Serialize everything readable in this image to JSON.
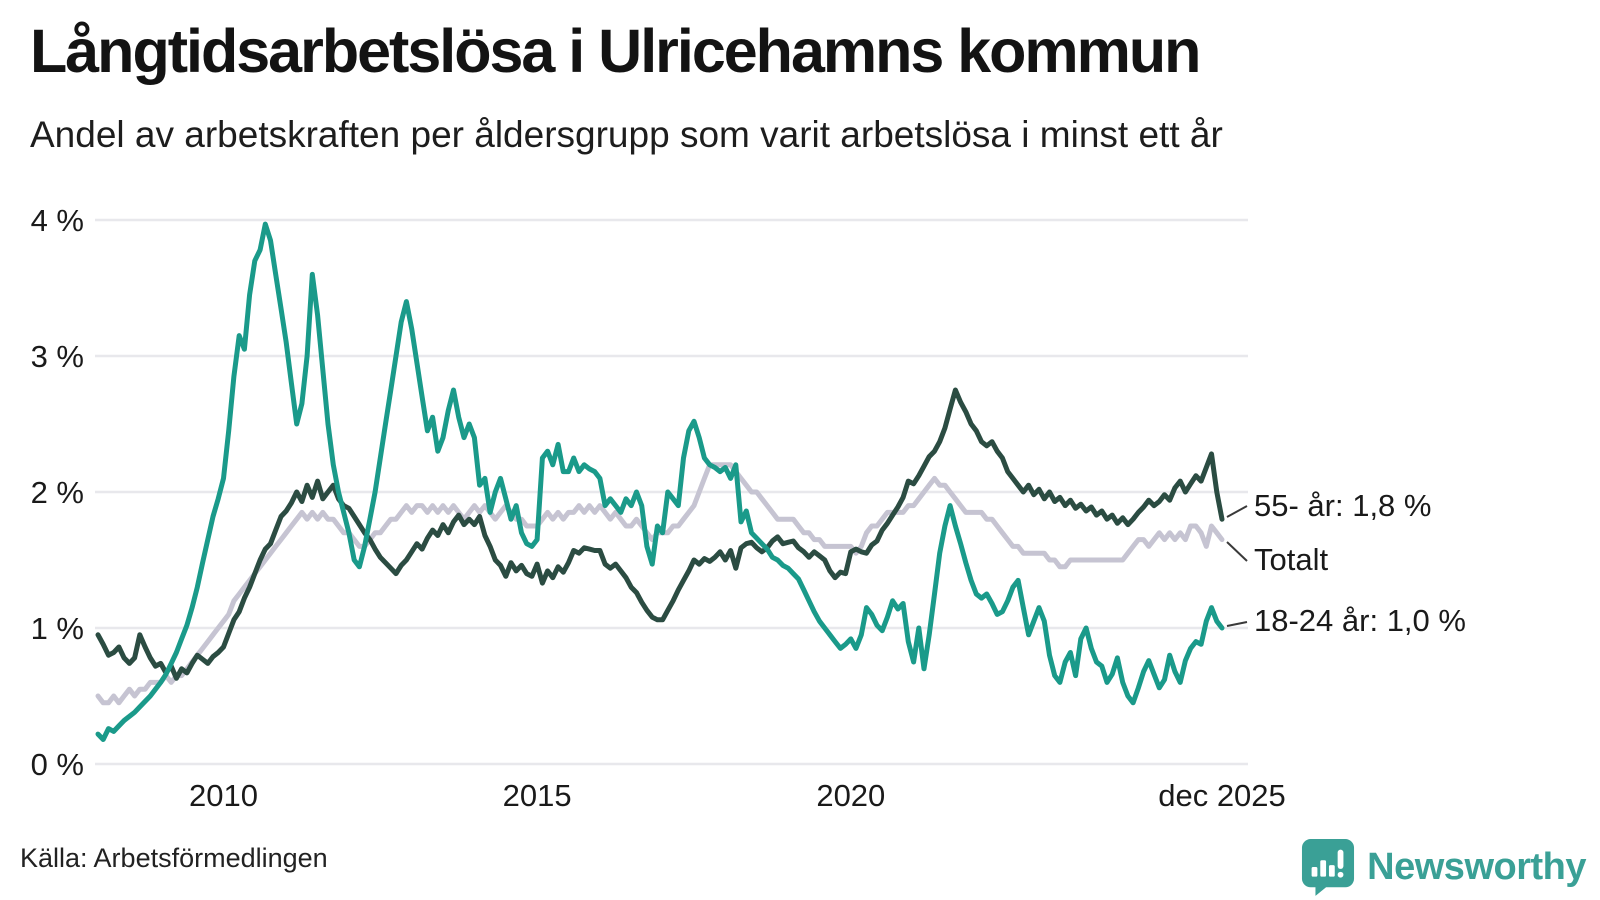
{
  "header": {
    "title": "Långtidsarbetslösa i Ulricehamns kommun",
    "subtitle": "Andel av arbetskraften per åldersgrupp som varit arbetslösa i minst ett år"
  },
  "footer": {
    "source": "Källa: Arbetsförmedlingen",
    "brand": "Newsworthy",
    "brand_color": "#3aa096"
  },
  "chart_data": {
    "type": "line",
    "title": "Långtidsarbetslösa i Ulricehamns kommun",
    "subtitle": "Andel av arbetskraften per åldersgrupp som varit arbetslösa i minst ett år",
    "source": "Källa: Arbetsförmedlingen",
    "grid": "horizontal",
    "legend_position": "end-of-line-labels-right",
    "x_axis": {
      "tick_labels": [
        "2010",
        "2015",
        "2020",
        "dec 2025"
      ],
      "tick_month_index": [
        24,
        84,
        144,
        215
      ],
      "start_year": 2008,
      "months_total": 216,
      "unit": "month"
    },
    "y_axis": {
      "tick_labels": [
        "0 %",
        "1 %",
        "2 %",
        "3 %",
        "4 %"
      ],
      "ylim": [
        0,
        4
      ],
      "unit": "%"
    },
    "series": [
      {
        "id": "55-ar",
        "name": "55- år",
        "end_label": "55- år: 1,8 %",
        "last_value": 1.8,
        "color": "#2b4c42",
        "values": [
          0.95,
          0.88,
          0.8,
          0.82,
          0.86,
          0.78,
          0.74,
          0.78,
          0.95,
          0.86,
          0.78,
          0.72,
          0.74,
          0.67,
          0.72,
          0.63,
          0.7,
          0.67,
          0.74,
          0.8,
          0.77,
          0.74,
          0.79,
          0.82,
          0.86,
          0.96,
          1.06,
          1.12,
          1.22,
          1.3,
          1.4,
          1.5,
          1.58,
          1.62,
          1.72,
          1.82,
          1.86,
          1.92,
          2.0,
          1.93,
          2.05,
          1.96,
          2.08,
          1.95,
          2.0,
          2.05,
          1.95,
          1.9,
          1.88,
          1.82,
          1.76,
          1.7,
          1.65,
          1.58,
          1.52,
          1.48,
          1.44,
          1.4,
          1.46,
          1.5,
          1.56,
          1.62,
          1.58,
          1.66,
          1.72,
          1.68,
          1.76,
          1.7,
          1.78,
          1.83,
          1.76,
          1.8,
          1.76,
          1.82,
          1.68,
          1.6,
          1.5,
          1.46,
          1.38,
          1.48,
          1.42,
          1.46,
          1.4,
          1.38,
          1.47,
          1.33,
          1.42,
          1.37,
          1.45,
          1.41,
          1.48,
          1.57,
          1.55,
          1.59,
          1.58,
          1.57,
          1.57,
          1.47,
          1.44,
          1.47,
          1.42,
          1.37,
          1.3,
          1.26,
          1.19,
          1.13,
          1.08,
          1.06,
          1.06,
          1.13,
          1.2,
          1.28,
          1.35,
          1.42,
          1.5,
          1.47,
          1.51,
          1.49,
          1.52,
          1.56,
          1.5,
          1.57,
          1.44,
          1.59,
          1.62,
          1.63,
          1.59,
          1.56,
          1.59,
          1.64,
          1.67,
          1.62,
          1.63,
          1.64,
          1.59,
          1.56,
          1.52,
          1.56,
          1.53,
          1.5,
          1.42,
          1.37,
          1.41,
          1.4,
          1.56,
          1.58,
          1.56,
          1.55,
          1.61,
          1.64,
          1.72,
          1.77,
          1.83,
          1.89,
          1.96,
          2.08,
          2.06,
          2.12,
          2.19,
          2.26,
          2.3,
          2.37,
          2.47,
          2.61,
          2.75,
          2.66,
          2.59,
          2.5,
          2.45,
          2.37,
          2.34,
          2.37,
          2.3,
          2.25,
          2.15,
          2.1,
          2.05,
          2.0,
          2.05,
          1.98,
          2.02,
          1.95,
          2.0,
          1.93,
          1.96,
          1.9,
          1.94,
          1.88,
          1.91,
          1.86,
          1.89,
          1.83,
          1.86,
          1.8,
          1.83,
          1.77,
          1.81,
          1.76,
          1.8,
          1.85,
          1.89,
          1.94,
          1.9,
          1.93,
          1.98,
          1.94,
          2.03,
          2.08,
          2.0,
          2.06,
          2.12,
          2.08,
          2.18,
          2.28,
          2.0,
          1.8
        ]
      },
      {
        "id": "totalt",
        "name": "Totalt",
        "end_label": "Totalt",
        "last_value": 1.65,
        "color": "#c6c4d2",
        "values": [
          0.5,
          0.45,
          0.45,
          0.5,
          0.45,
          0.5,
          0.55,
          0.5,
          0.55,
          0.55,
          0.6,
          0.6,
          0.6,
          0.65,
          0.6,
          0.65,
          0.65,
          0.7,
          0.75,
          0.8,
          0.85,
          0.9,
          0.95,
          1.0,
          1.05,
          1.1,
          1.2,
          1.25,
          1.3,
          1.35,
          1.4,
          1.45,
          1.5,
          1.55,
          1.6,
          1.65,
          1.7,
          1.75,
          1.8,
          1.85,
          1.8,
          1.85,
          1.8,
          1.85,
          1.8,
          1.8,
          1.75,
          1.7,
          1.7,
          1.65,
          1.6,
          1.6,
          1.65,
          1.7,
          1.7,
          1.75,
          1.8,
          1.8,
          1.85,
          1.9,
          1.85,
          1.9,
          1.9,
          1.85,
          1.9,
          1.85,
          1.9,
          1.85,
          1.9,
          1.85,
          1.8,
          1.85,
          1.9,
          1.85,
          1.9,
          1.85,
          1.8,
          1.85,
          1.9,
          1.85,
          1.8,
          1.8,
          1.75,
          1.75,
          1.75,
          1.8,
          1.85,
          1.8,
          1.85,
          1.8,
          1.85,
          1.85,
          1.9,
          1.85,
          1.9,
          1.85,
          1.9,
          1.85,
          1.8,
          1.85,
          1.8,
          1.75,
          1.75,
          1.8,
          1.75,
          1.7,
          1.65,
          1.7,
          1.7,
          1.7,
          1.75,
          1.75,
          1.8,
          1.85,
          1.9,
          2.0,
          2.1,
          2.2,
          2.2,
          2.2,
          2.2,
          2.2,
          2.15,
          2.1,
          2.05,
          2.0,
          2.0,
          1.95,
          1.9,
          1.85,
          1.8,
          1.8,
          1.8,
          1.8,
          1.75,
          1.7,
          1.7,
          1.65,
          1.65,
          1.6,
          1.6,
          1.6,
          1.6,
          1.6,
          1.6,
          1.55,
          1.6,
          1.7,
          1.75,
          1.75,
          1.8,
          1.85,
          1.85,
          1.85,
          1.85,
          1.9,
          1.9,
          1.95,
          2.0,
          2.05,
          2.1,
          2.05,
          2.05,
          2.0,
          1.95,
          1.9,
          1.85,
          1.85,
          1.85,
          1.85,
          1.8,
          1.8,
          1.75,
          1.7,
          1.65,
          1.6,
          1.6,
          1.55,
          1.55,
          1.55,
          1.55,
          1.55,
          1.5,
          1.5,
          1.45,
          1.45,
          1.5,
          1.5,
          1.5,
          1.5,
          1.5,
          1.5,
          1.5,
          1.5,
          1.5,
          1.5,
          1.5,
          1.55,
          1.6,
          1.65,
          1.65,
          1.6,
          1.65,
          1.7,
          1.65,
          1.7,
          1.65,
          1.7,
          1.65,
          1.75,
          1.75,
          1.7,
          1.6,
          1.75,
          1.7,
          1.65
        ]
      },
      {
        "id": "18-24-ar",
        "name": "18-24 år",
        "end_label": "18-24 år: 1,0 %",
        "last_value": 1.0,
        "color": "#1a9a8a",
        "values": [
          0.22,
          0.18,
          0.26,
          0.24,
          0.28,
          0.32,
          0.35,
          0.38,
          0.42,
          0.46,
          0.5,
          0.55,
          0.6,
          0.66,
          0.74,
          0.82,
          0.92,
          1.02,
          1.15,
          1.3,
          1.48,
          1.65,
          1.82,
          1.95,
          2.1,
          2.45,
          2.85,
          3.15,
          3.05,
          3.45,
          3.7,
          3.78,
          3.97,
          3.85,
          3.6,
          3.35,
          3.1,
          2.8,
          2.5,
          2.65,
          3.0,
          3.6,
          3.3,
          2.9,
          2.5,
          2.2,
          2.0,
          1.85,
          1.7,
          1.5,
          1.45,
          1.6,
          1.8,
          2.0,
          2.25,
          2.5,
          2.75,
          3.0,
          3.25,
          3.4,
          3.2,
          2.95,
          2.7,
          2.45,
          2.55,
          2.3,
          2.4,
          2.6,
          2.75,
          2.55,
          2.4,
          2.5,
          2.4,
          2.05,
          2.1,
          1.85,
          2.0,
          2.1,
          1.95,
          1.8,
          1.9,
          1.7,
          1.62,
          1.6,
          1.65,
          2.25,
          2.3,
          2.2,
          2.35,
          2.15,
          2.15,
          2.25,
          2.15,
          2.2,
          2.17,
          2.15,
          2.1,
          1.9,
          1.95,
          1.9,
          1.85,
          1.95,
          1.9,
          2.0,
          1.9,
          1.6,
          1.47,
          1.75,
          1.7,
          2.0,
          1.95,
          1.9,
          2.25,
          2.45,
          2.52,
          2.4,
          2.25,
          2.2,
          2.18,
          2.15,
          2.18,
          2.1,
          2.2,
          1.78,
          1.86,
          1.7,
          1.66,
          1.62,
          1.58,
          1.52,
          1.5,
          1.46,
          1.44,
          1.4,
          1.36,
          1.28,
          1.2,
          1.12,
          1.05,
          1.0,
          0.95,
          0.9,
          0.85,
          0.88,
          0.92,
          0.85,
          0.95,
          1.15,
          1.1,
          1.02,
          0.98,
          1.08,
          1.2,
          1.14,
          1.18,
          0.9,
          0.75,
          1.0,
          0.7,
          0.95,
          1.25,
          1.55,
          1.75,
          1.9,
          1.75,
          1.62,
          1.48,
          1.35,
          1.25,
          1.22,
          1.25,
          1.18,
          1.1,
          1.12,
          1.2,
          1.3,
          1.35,
          1.15,
          0.95,
          1.05,
          1.15,
          1.05,
          0.8,
          0.65,
          0.6,
          0.75,
          0.82,
          0.65,
          0.92,
          1.0,
          0.85,
          0.75,
          0.72,
          0.6,
          0.66,
          0.78,
          0.6,
          0.5,
          0.45,
          0.56,
          0.68,
          0.76,
          0.66,
          0.56,
          0.62,
          0.8,
          0.68,
          0.6,
          0.76,
          0.85,
          0.9,
          0.88,
          1.05,
          1.15,
          1.05,
          1.0
        ]
      }
    ]
  }
}
